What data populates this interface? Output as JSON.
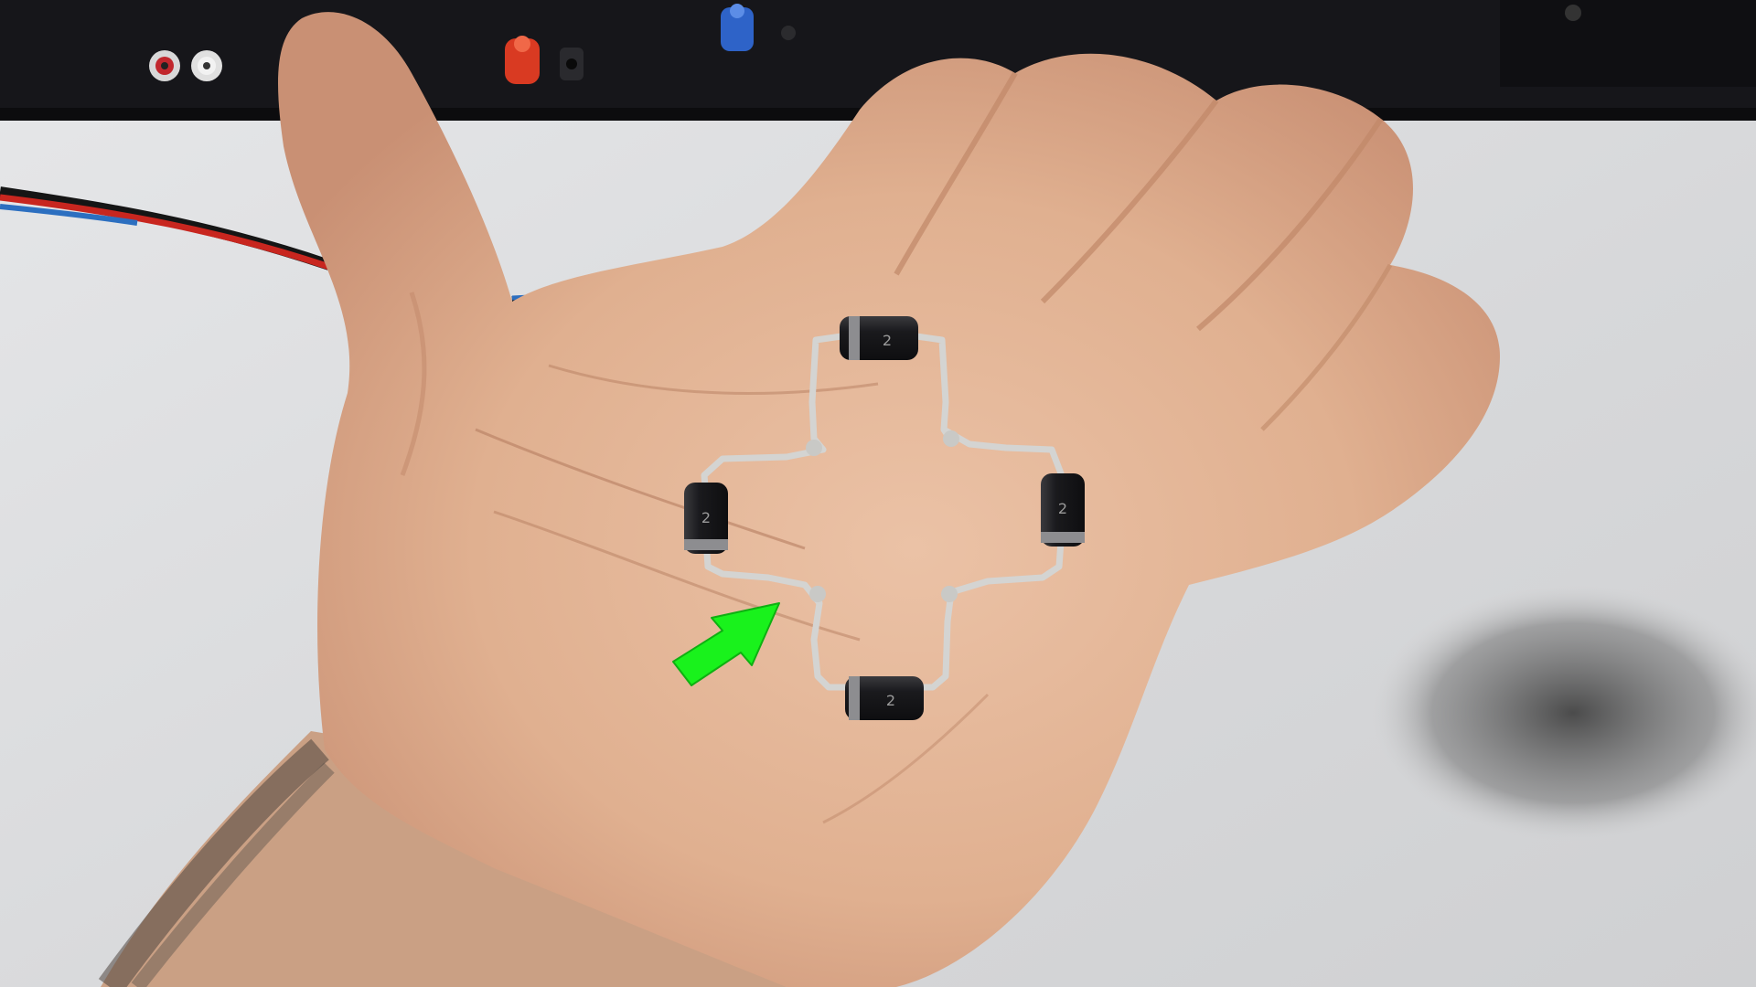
{
  "scene": {
    "description_free": true,
    "colors": {
      "table": "#d9dadc",
      "equipment": "#16161a",
      "skin": "#e3b597",
      "skin_shadow": "#c98f72",
      "wire_red": "#c8261f",
      "wire_black": "#151515",
      "wire_blue": "#2c6fc0",
      "diode_body": "#1b1b1e",
      "diode_band": "#8d8d90",
      "lead_silver": "#d4d4d2",
      "arrow": "#19f21c",
      "terminal_red": "#d93a22",
      "terminal_blue": "#2e63c8"
    },
    "diodes": [
      {
        "label": "2",
        "orientation": "horizontal"
      },
      {
        "label": "2",
        "orientation": "vertical"
      },
      {
        "label": "2",
        "orientation": "vertical"
      },
      {
        "label": "2",
        "orientation": "horizontal"
      }
    ],
    "icons": {
      "pointer": "arrow-icon"
    }
  }
}
